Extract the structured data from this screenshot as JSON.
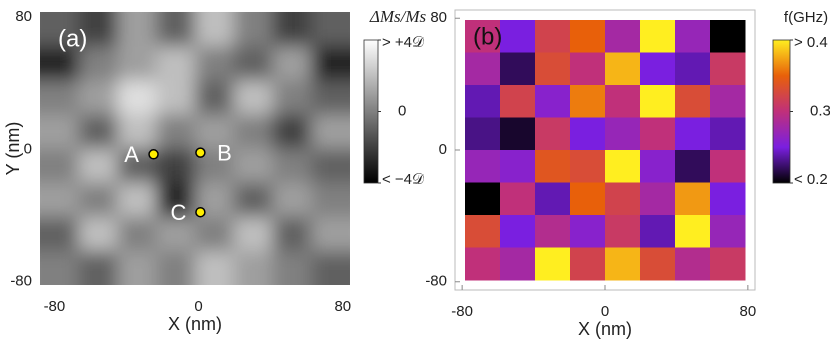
{
  "chart_data": [
    {
      "type": "heatmap",
      "panel_label": "(a)",
      "x_label": "X (nm)",
      "y_label": "Y (nm)",
      "xlim": [
        -88,
        84
      ],
      "ylim": [
        -82,
        83
      ],
      "xticks": [
        -80,
        0,
        80
      ],
      "yticks": [
        -80,
        0,
        80
      ],
      "z": [
        [
          -1,
          -2,
          1,
          -1,
          2,
          0,
          -2,
          -1
        ],
        [
          -3,
          0,
          1,
          2,
          0,
          -1,
          1,
          -3
        ],
        [
          0,
          1,
          3,
          2,
          -1,
          2,
          0,
          -1
        ],
        [
          1,
          -1,
          2,
          0,
          1,
          0,
          -2,
          1
        ],
        [
          0,
          2,
          -1,
          -2,
          0,
          1,
          0,
          -1
        ],
        [
          1,
          0,
          2,
          -3,
          1,
          -1,
          1,
          0
        ],
        [
          -1,
          2,
          0,
          1,
          0,
          2,
          -1,
          1
        ],
        [
          0,
          -1,
          1,
          0,
          2,
          1,
          0,
          -1
        ]
      ],
      "zlim": [
        -4,
        4
      ],
      "colormap": [
        "#000000",
        "#ffffff"
      ],
      "colorbar_title": "ΔMs/Ms",
      "colorbar_ticks": [
        {
          "value": 4,
          "label": "> +4𝒟"
        },
        0,
        {
          "value": -4,
          "label": "< −4𝒟"
        }
      ],
      "points": [
        {
          "label": "A",
          "x": -25,
          "y": -3
        },
        {
          "label": "B",
          "x": 1,
          "y": -2
        },
        {
          "label": "C",
          "x": 1,
          "y": -38
        }
      ],
      "point_color": "#ffee00"
    },
    {
      "type": "heatmap",
      "panel_label": "(b)",
      "x_label": "X (nm)",
      "xlim": [
        -84,
        84
      ],
      "ylim": [
        -85,
        85
      ],
      "xticks": [
        -80,
        0,
        80
      ],
      "yticks": [
        -80,
        0,
        80
      ],
      "z": [
        [
          0.3,
          0.25,
          0.32,
          0.35,
          0.28,
          0.4,
          0.27,
          0.2
        ],
        [
          0.28,
          0.22,
          0.33,
          0.3,
          0.38,
          0.25,
          0.24,
          0.31
        ],
        [
          0.24,
          0.32,
          0.26,
          0.36,
          0.3,
          0.4,
          0.33,
          0.28
        ],
        [
          0.23,
          0.21,
          0.31,
          0.25,
          0.27,
          0.3,
          0.25,
          0.24
        ],
        [
          0.27,
          0.26,
          0.34,
          0.33,
          0.4,
          0.26,
          0.22,
          0.3
        ],
        [
          0.2,
          0.3,
          0.24,
          0.35,
          0.32,
          0.28,
          0.37,
          0.25
        ],
        [
          0.33,
          0.25,
          0.29,
          0.26,
          0.31,
          0.24,
          0.4,
          0.27
        ],
        [
          0.3,
          0.28,
          0.4,
          0.32,
          0.38,
          0.33,
          0.29,
          0.31
        ]
      ],
      "zlim": [
        0.2,
        0.4
      ],
      "colormap": [
        "#000000",
        "#7a1fe0",
        "#c0307a",
        "#e8600a",
        "#ffee20"
      ],
      "colorbar_title": "f(GHz)",
      "colorbar_ticks": [
        {
          "value": 0.4,
          "label": "> 0.4"
        },
        0.3,
        {
          "value": 0.2,
          "label": "< 0.2"
        }
      ]
    }
  ]
}
